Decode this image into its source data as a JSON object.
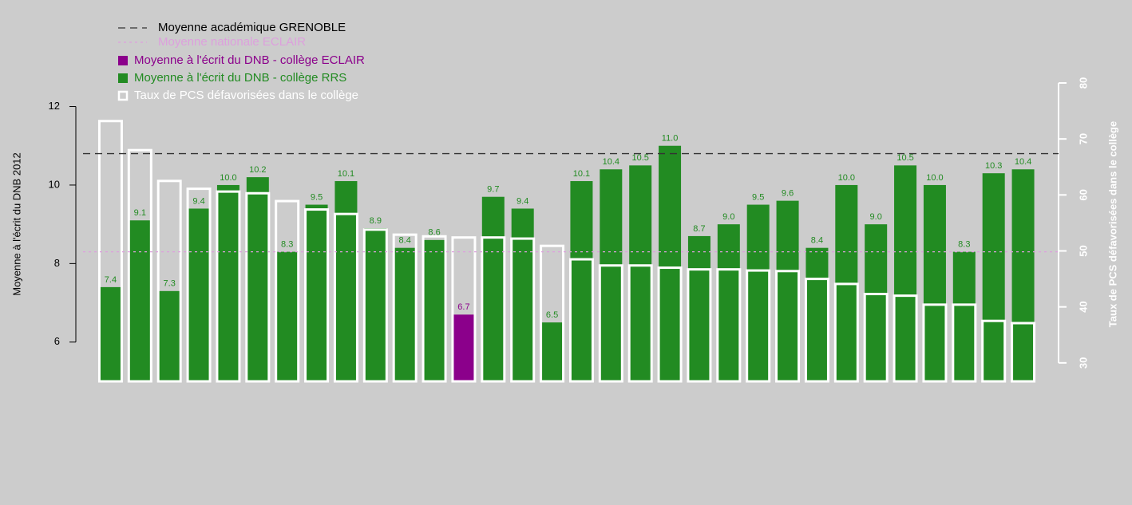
{
  "chart_data": {
    "type": "bar",
    "ylabel": "Moyenne à l'écrit du DNB 2012",
    "y2label": "Taux de PCS défavorisées dans le collège",
    "categories": [
      null,
      null,
      null,
      null,
      null,
      null,
      null,
      null,
      null,
      null,
      null,
      null,
      null,
      null,
      null,
      null,
      null,
      null,
      null,
      null,
      null,
      null,
      null,
      null,
      null,
      null,
      null,
      null,
      null,
      null,
      null,
      null
    ],
    "ylim": [
      5,
      12.6
    ],
    "yticks": [
      6,
      8,
      10,
      12
    ],
    "y2lim": [
      26.7,
      80
    ],
    "y2ticks": [
      30,
      40,
      50,
      60,
      70,
      80
    ],
    "legend": "top-left",
    "ref_lines": [
      {
        "name": "Moyenne académique GRENOBLE",
        "value": 10.8,
        "color": "#333333",
        "text_color": "#000000",
        "dash": "9,6"
      },
      {
        "name": "Moyenne nationale ECLAIR",
        "value": 8.3,
        "color": "#dda0dd",
        "text_color": "#dda0dd",
        "dash": "3,4"
      }
    ],
    "series": [
      {
        "name": "Moyenne à l'écrit du DNB - collège ECLAIR",
        "color": "#8b008b",
        "style": "filled",
        "values": [
          null,
          null,
          null,
          null,
          null,
          null,
          null,
          null,
          null,
          null,
          null,
          null,
          6.7,
          null,
          null,
          null,
          null,
          null,
          null,
          null,
          null,
          null,
          null,
          null,
          null,
          null,
          null,
          null,
          null,
          null,
          null,
          null
        ],
        "value_labels": [
          null,
          null,
          null,
          null,
          null,
          null,
          null,
          null,
          null,
          null,
          null,
          null,
          "6.7",
          null,
          null,
          null,
          null,
          null,
          null,
          null,
          null,
          null,
          null,
          null,
          null,
          null,
          null,
          null,
          null,
          null,
          null,
          null
        ]
      },
      {
        "name": "Moyenne à l'écrit du DNB - collège RRS",
        "color": "#228b22",
        "style": "filled",
        "values": [
          7.4,
          9.1,
          7.3,
          9.4,
          10,
          10.2,
          8.3,
          9.5,
          10.1,
          8.9,
          8.4,
          8.6,
          null,
          9.7,
          9.4,
          6.5,
          10.1,
          10.4,
          10.5,
          11,
          8.7,
          9,
          9.5,
          9.6,
          8.4,
          10,
          9,
          10.5,
          10,
          8.3,
          10.3,
          10.4
        ],
        "value_labels": [
          "7.4",
          "9.1",
          "7.3",
          "9.4",
          "10.0",
          "10.2",
          "8.3",
          "9.5",
          "10.1",
          "8.9",
          "8.4",
          "8.6",
          null,
          "9.7",
          "9.4",
          "6.5",
          "10.1",
          "10.4",
          "10.5",
          "11.0",
          "8.7",
          "9.0",
          "9.5",
          "9.6",
          "8.4",
          "10.0",
          "9.0",
          "10.5",
          "10.0",
          "8.3",
          "10.3",
          "10.4"
        ]
      },
      {
        "name": "Taux de PCS défavorisées dans le collège",
        "color": "#ffffff",
        "style": "outline",
        "axis": "y2",
        "values": [
          73.2,
          68,
          62.5,
          61.1,
          60.6,
          60.3,
          58.9,
          57.4,
          56.6,
          53.8,
          52.9,
          52.6,
          52.4,
          52.4,
          52.2,
          50.9,
          48.5,
          47.4,
          47.4,
          47,
          46.7,
          46.7,
          46.5,
          46.4,
          45,
          44.1,
          42.3,
          42,
          40.4,
          40.4,
          37.5,
          37.1
        ]
      }
    ]
  }
}
